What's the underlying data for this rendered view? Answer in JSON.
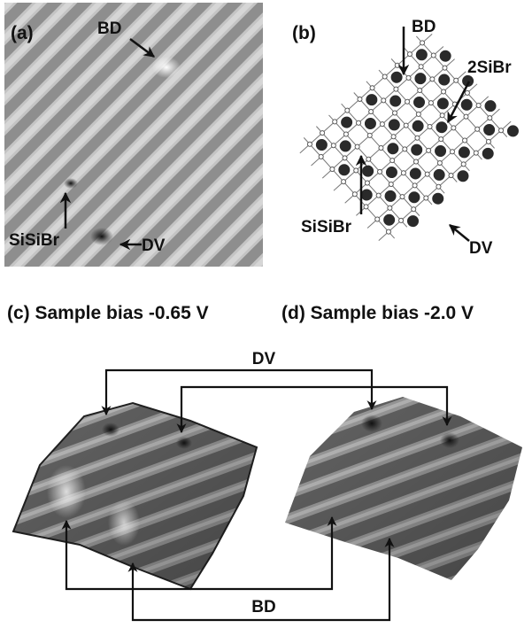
{
  "panels": [
    {
      "label": "(a)",
      "annotations": [
        "BD",
        "SiSiBr",
        "DV"
      ]
    },
    {
      "label": "(b)",
      "annotations": [
        "BD",
        "2SiBr",
        "SiSiBr",
        "DV"
      ]
    },
    {
      "label": "(c) Sample bias -0.65 V"
    },
    {
      "label": "(d) Sample bias -2.0 V"
    }
  ],
  "connectors": [
    "DV",
    "BD"
  ]
}
